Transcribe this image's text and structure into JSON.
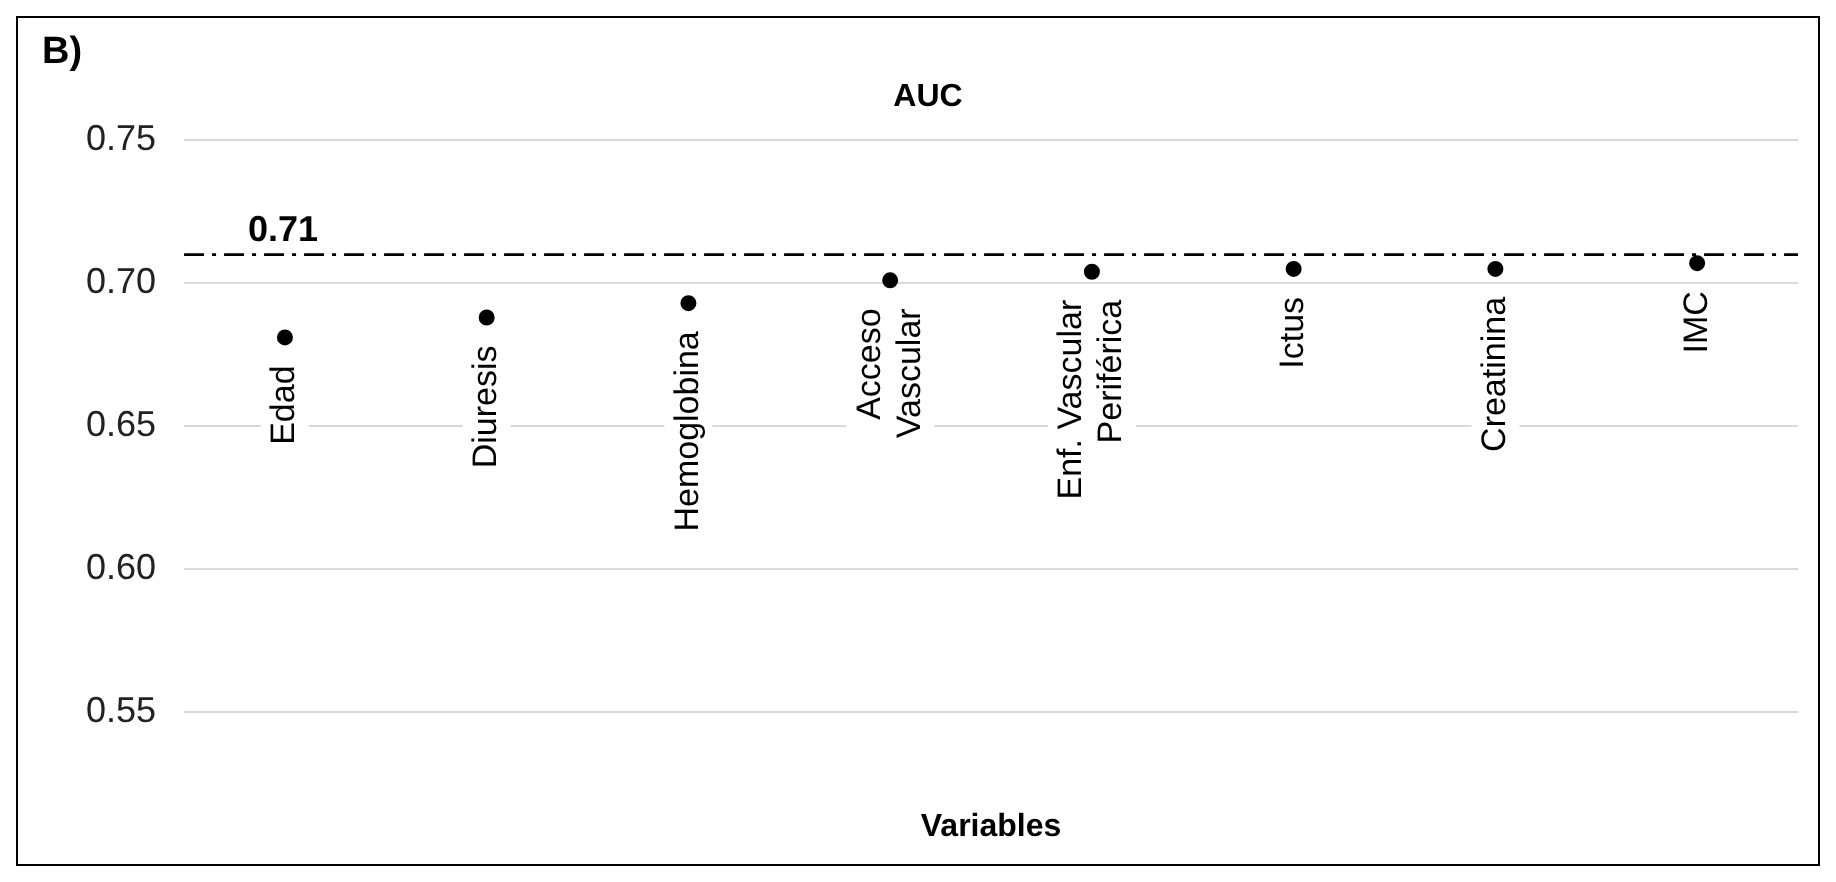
{
  "chart_data": {
    "type": "scatter",
    "title": "AUC",
    "xlabel": "Variables",
    "categories": [
      "Edad",
      "Diuresis",
      "Hemoglobina",
      "Acceso Vascular",
      "Enf. Vascular Periférica",
      "Ictus",
      "Creatinina",
      "IMC"
    ],
    "series": [
      {
        "color": "#000000",
        "values": [
          0.681,
          0.688,
          0.693,
          0.701,
          0.704,
          0.705,
          0.705,
          0.707
        ]
      }
    ],
    "ylim": [
      0.55,
      0.75
    ],
    "yticks": [
      0.55,
      {
        "value": 0.6,
        "label": "0.60"
      },
      0.65,
      {
        "value": 0.7,
        "label": "0.70"
      },
      0.75
    ],
    "grid": "y",
    "marker": "circle",
    "legend": false,
    "ref_lines": [
      {
        "axis": "y",
        "value": 0.71,
        "label": "0.71",
        "color": "#000000"
      }
    ],
    "annotations": [
      "B)"
    ]
  }
}
